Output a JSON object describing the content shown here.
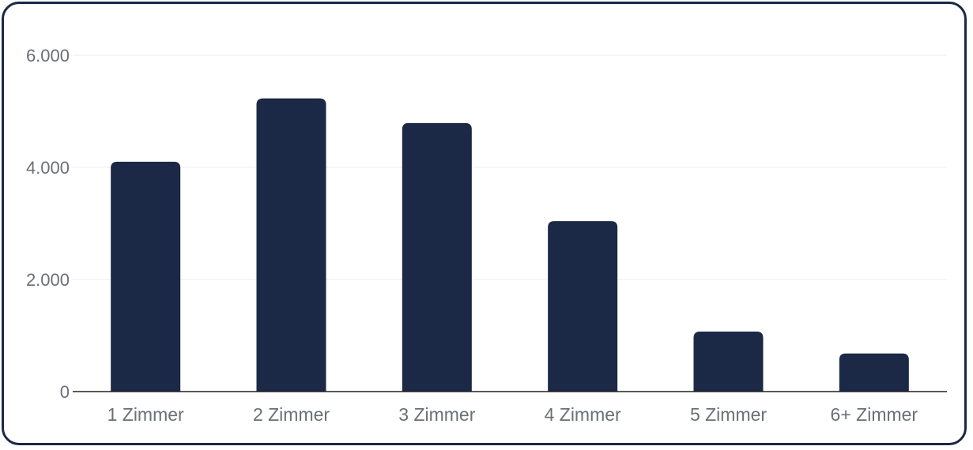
{
  "chart_data": {
    "type": "bar",
    "categories": [
      "1 Zimmer",
      "2 Zimmer",
      "3 Zimmer",
      "4 Zimmer",
      "5 Zimmer",
      "6+ Zimmer"
    ],
    "values": [
      4100,
      5230,
      4790,
      3040,
      1070,
      680
    ],
    "yticks": [
      0,
      2000,
      4000,
      6000
    ],
    "ytick_labels": [
      "0",
      "2.000",
      "4.000",
      "6.000"
    ],
    "ylim": [
      0,
      6000
    ],
    "title": "",
    "xlabel": "",
    "ylabel": "",
    "grid": true,
    "legend": "none",
    "colors": {
      "bar": "#1b2846",
      "grid": "#ececec",
      "axis": "#222222",
      "frame": "#1b2846"
    }
  }
}
